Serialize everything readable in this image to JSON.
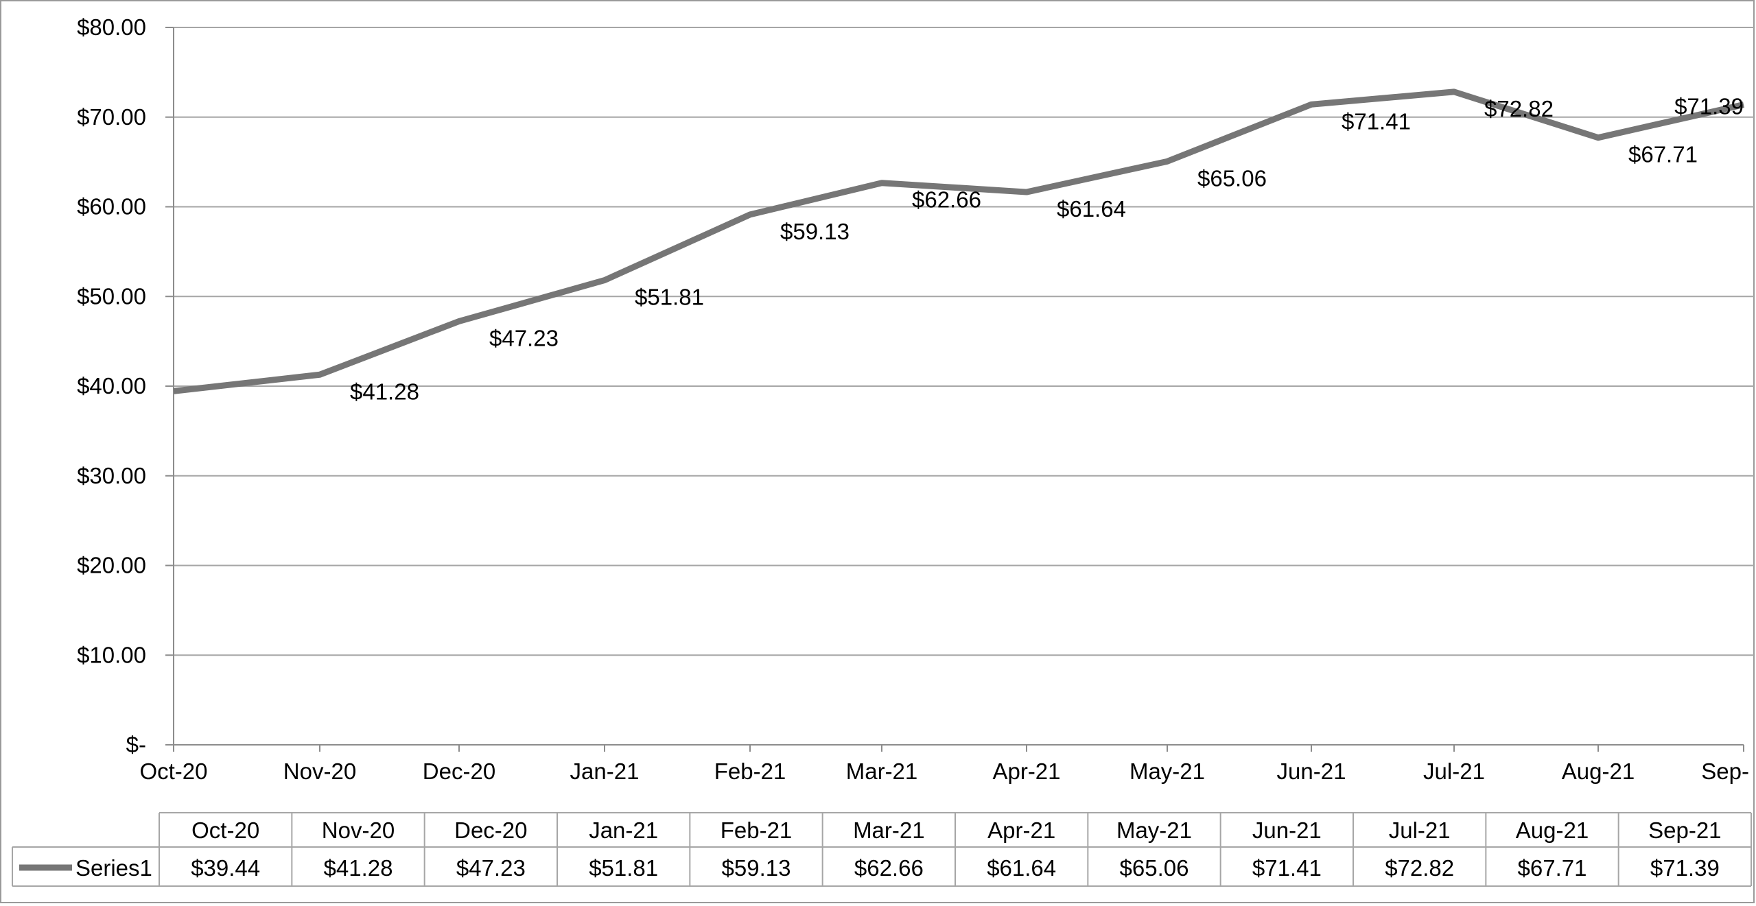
{
  "chart_data": {
    "type": "line",
    "categories": [
      "Oct-20",
      "Nov-20",
      "Dec-20",
      "Jan-21",
      "Feb-21",
      "Mar-21",
      "Apr-21",
      "May-21",
      "Jun-21",
      "Jul-21",
      "Aug-21",
      "Sep-21"
    ],
    "axis_categories": [
      "Oct-20",
      "Nov-20",
      "Dec-20",
      "Jan-21",
      "Feb-21",
      "Mar-21",
      "Apr-21",
      "May-21",
      "Jun-21",
      "Jul-21",
      "Aug-21",
      "Sep-"
    ],
    "series": [
      {
        "name": "Series1",
        "values": [
          39.44,
          41.28,
          47.23,
          51.81,
          59.13,
          62.66,
          61.64,
          65.06,
          71.41,
          72.82,
          67.71,
          71.39
        ],
        "labels": [
          "$39.44",
          "$41.28",
          "$47.23",
          "$51.81",
          "$59.13",
          "$62.66",
          "$61.64",
          "$65.06",
          "$71.41",
          "$72.82",
          "$67.71",
          "$71.39"
        ],
        "color": "#767676"
      }
    ],
    "y_ticks": [
      "$-",
      "$10.00",
      "$20.00",
      "$30.00",
      "$40.00",
      "$50.00",
      "$60.00",
      "$70.00",
      "$80.00"
    ],
    "ylim": [
      0,
      80
    ],
    "grid": true,
    "data_table": true,
    "title": "",
    "xlabel": "",
    "ylabel": ""
  },
  "colors": {
    "line": "#767676",
    "grid": "#a6a6a6",
    "axis": "#8c8c8c",
    "text": "#000000"
  }
}
